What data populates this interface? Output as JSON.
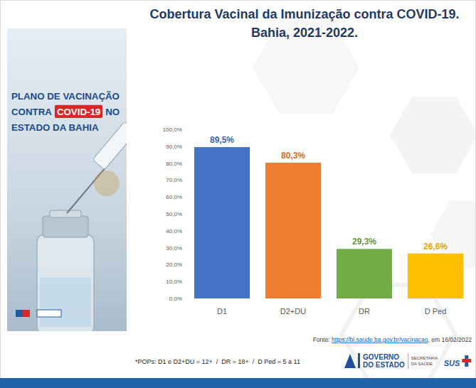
{
  "chart_data": {
    "type": "bar",
    "title": "Cobertura Vacinal da Imunização contra COVID-19. Bahia, 2021-2022.",
    "categories": [
      "D1",
      "D2+DU",
      "DR",
      "D Ped"
    ],
    "values": [
      89.5,
      80.3,
      29.3,
      26.6
    ],
    "value_labels": [
      "89,5%",
      "80,3%",
      "29,3%",
      "26,6%"
    ],
    "colors": [
      "#4472c4",
      "#ed7d31",
      "#70ad47",
      "#ffc000"
    ],
    "ylim": [
      0,
      100
    ],
    "yticks": [
      {
        "value": 0,
        "label": "0,0%"
      },
      {
        "value": 10,
        "label": "10,0%"
      },
      {
        "value": 20,
        "label": "20,0%"
      },
      {
        "value": 30,
        "label": "30,0%"
      },
      {
        "value": 40,
        "label": "40,0%"
      },
      {
        "value": 50,
        "label": "50,0%"
      },
      {
        "value": 60,
        "label": "60,0%"
      },
      {
        "value": 70,
        "label": "70,0%"
      },
      {
        "value": 80,
        "label": "80,0%"
      },
      {
        "value": 90,
        "label": "90,0%"
      },
      {
        "value": 100,
        "label": "100,0%"
      }
    ],
    "grid": false,
    "data_labels": true,
    "source": "Fonte: https://bi.saude.ba.gov.br/vacinacao, em 16/02/2022",
    "note": "*POPs: D1 e D2+DU = 12+  /  DR = 18+  /  D Ped = 5 a 11"
  },
  "poster": {
    "line1": "PLANO DE VACINAÇÃO",
    "line2_before": "CONTRA",
    "line2_badge": "COVID-19",
    "line2_after": "NO",
    "line3": "ESTADO DA BAHIA"
  },
  "logos": {
    "governo": [
      "GOVERNO",
      "DO ESTADO"
    ],
    "secretaria": [
      "SECRETARIA",
      "DA SAÚDE"
    ],
    "sus": "SUS"
  }
}
